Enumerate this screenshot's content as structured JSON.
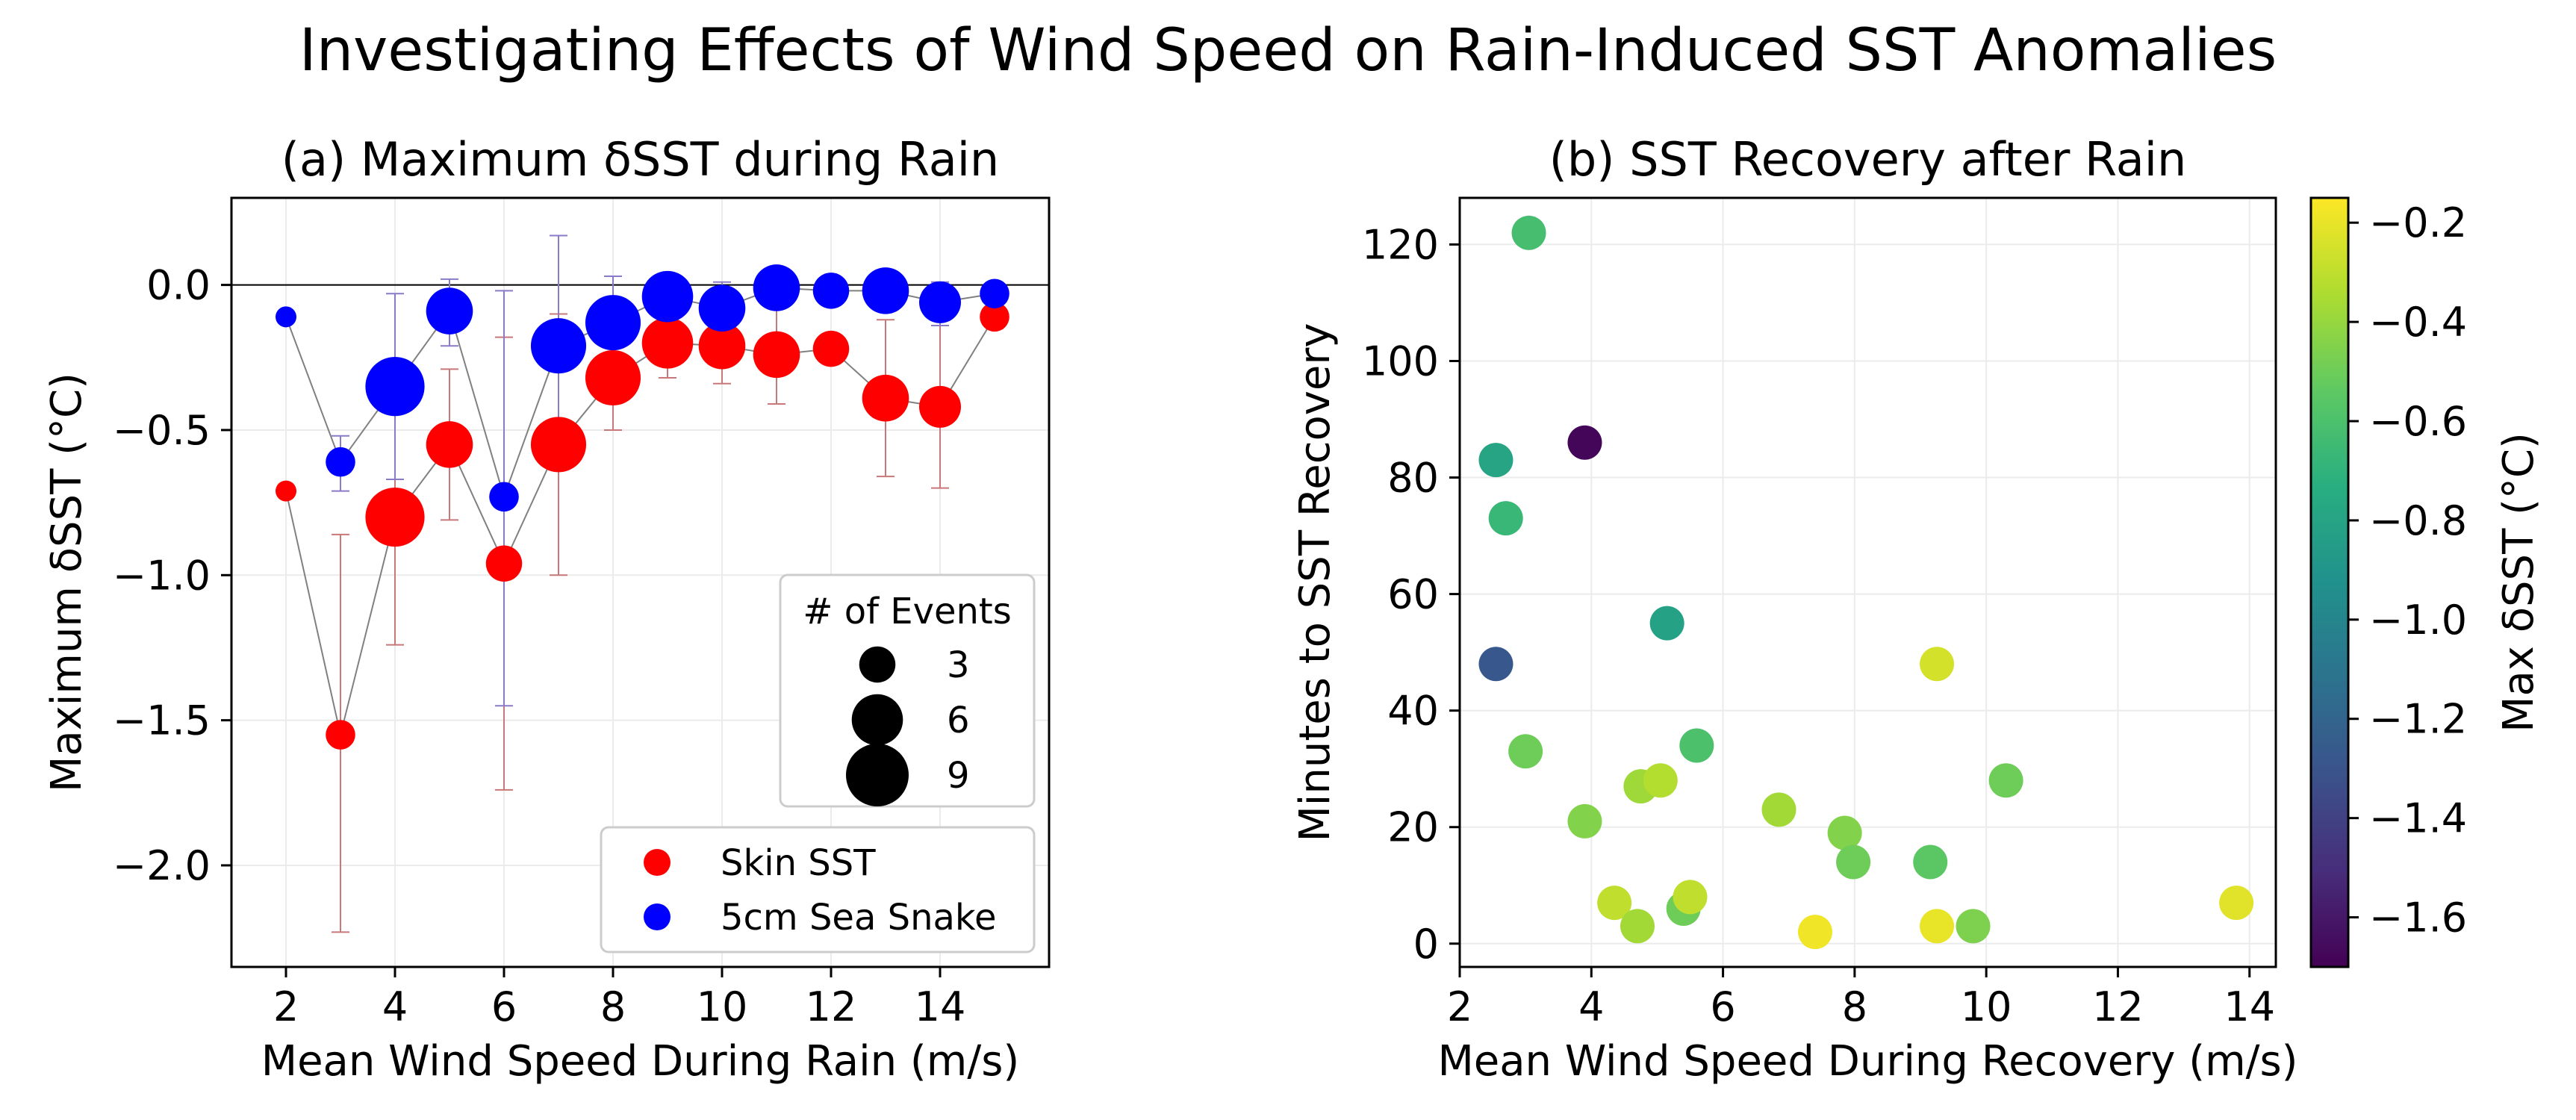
{
  "title": "Investigating Effects of Wind Speed on Rain-Induced SST Anomalies",
  "chart_data": [
    {
      "type": "scatter",
      "title": "(a) Maximum δSST during Rain",
      "xlabel": "Mean Wind Speed During Rain (m/s)",
      "ylabel": "Maximum δSST (°C)",
      "xlim": [
        1,
        16
      ],
      "ylim": [
        -2.35,
        0.3
      ],
      "xticks": [
        2,
        4,
        6,
        8,
        10,
        12,
        14
      ],
      "yticks": [
        0.0,
        -0.5,
        -1.0,
        -1.5,
        -2.0
      ],
      "xtick_labels": [
        "2",
        "4",
        "6",
        "8",
        "10",
        "12",
        "14"
      ],
      "ytick_labels": [
        "0.0",
        "−0.5",
        "−1.0",
        "−1.5",
        "−2.0"
      ],
      "grid": true,
      "reference_line_y": 0,
      "x": [
        2,
        3,
        4,
        5,
        6,
        7,
        8,
        9,
        10,
        11,
        12,
        13,
        14,
        15
      ],
      "series": [
        {
          "name": "Skin SST",
          "color": "#ff0000",
          "error_color": "#c87878",
          "values": [
            -0.71,
            -1.55,
            -0.8,
            -0.55,
            -0.96,
            -0.55,
            -0.32,
            -0.2,
            -0.21,
            -0.24,
            -0.22,
            -0.39,
            -0.42,
            -0.11
          ],
          "err_low": [
            -0.71,
            -2.23,
            -1.24,
            -0.81,
            -1.74,
            -1.0,
            -0.5,
            -0.32,
            -0.34,
            -0.41,
            -0.27,
            -0.66,
            -0.7,
            -0.15
          ],
          "err_high": [
            -0.71,
            -0.86,
            -0.36,
            -0.29,
            -0.18,
            -0.1,
            -0.14,
            -0.08,
            -0.08,
            -0.07,
            -0.17,
            -0.12,
            -0.14,
            -0.07
          ],
          "events": [
            1,
            2,
            8,
            5,
            3,
            7,
            7,
            6,
            5,
            5,
            3,
            5,
            4,
            2
          ]
        },
        {
          "name": "5cm Sea Snake",
          "color": "#0000ff",
          "error_color": "#8a7ac8",
          "values": [
            -0.11,
            -0.61,
            -0.35,
            -0.09,
            -0.73,
            -0.21,
            -0.13,
            -0.04,
            -0.08,
            -0.01,
            -0.02,
            -0.02,
            -0.06,
            -0.03
          ],
          "err_low": [
            -0.11,
            -0.71,
            -0.67,
            -0.21,
            -1.45,
            -0.6,
            -0.3,
            -0.09,
            -0.17,
            -0.03,
            -0.03,
            -0.06,
            -0.14,
            -0.05
          ],
          "err_high": [
            -0.11,
            -0.52,
            -0.03,
            0.02,
            -0.02,
            0.17,
            0.03,
            0.01,
            0.01,
            0.01,
            -0.01,
            0.03,
            0.01,
            -0.01
          ],
          "events": [
            1,
            2,
            8,
            5,
            2,
            7,
            7,
            6,
            5,
            5,
            3,
            5,
            4,
            2
          ]
        }
      ],
      "size_legend": {
        "title": "# of Events",
        "entries": [
          3,
          6,
          9
        ],
        "entry_labels": [
          "3",
          "6",
          "9"
        ]
      },
      "legend_position": "lower-right"
    },
    {
      "type": "scatter",
      "title": "(b) SST Recovery after Rain",
      "xlabel": "Mean Wind Speed During Recovery (m/s)",
      "ylabel": "Minutes to SST Recovery",
      "xlim": [
        2,
        14.4
      ],
      "ylim": [
        -4,
        128
      ],
      "xticks": [
        2,
        4,
        6,
        8,
        10,
        12,
        14
      ],
      "yticks": [
        0,
        20,
        40,
        60,
        80,
        100,
        120
      ],
      "xtick_labels": [
        "2",
        "4",
        "6",
        "8",
        "10",
        "12",
        "14"
      ],
      "ytick_labels": [
        "0",
        "20",
        "40",
        "60",
        "80",
        "100",
        "120"
      ],
      "grid": true,
      "colorbar": {
        "label": "Max δSST (°C)",
        "colormap": "viridis",
        "range": [
          -1.7,
          -0.15
        ],
        "ticks": [
          -0.2,
          -0.4,
          -0.6,
          -0.8,
          -1.0,
          -1.2,
          -1.4,
          -1.6
        ],
        "tick_labels": [
          "−0.2",
          "−0.4",
          "−0.6",
          "−0.8",
          "−1.0",
          "−1.2",
          "−1.4",
          "−1.6"
        ]
      },
      "points": [
        {
          "x": 3.05,
          "y": 122,
          "c": -0.62
        },
        {
          "x": 2.55,
          "y": 83,
          "c": -0.8
        },
        {
          "x": 3.9,
          "y": 86,
          "c": -1.68
        },
        {
          "x": 2.7,
          "y": 73,
          "c": -0.67
        },
        {
          "x": 5.15,
          "y": 55,
          "c": -0.82
        },
        {
          "x": 2.55,
          "y": 48,
          "c": -1.28
        },
        {
          "x": 9.25,
          "y": 48,
          "c": -0.25
        },
        {
          "x": 3.0,
          "y": 33,
          "c": -0.5
        },
        {
          "x": 5.6,
          "y": 34,
          "c": -0.6
        },
        {
          "x": 3.9,
          "y": 21,
          "c": -0.45
        },
        {
          "x": 4.75,
          "y": 27,
          "c": -0.38
        },
        {
          "x": 5.05,
          "y": 28,
          "c": -0.33
        },
        {
          "x": 6.85,
          "y": 23,
          "c": -0.37
        },
        {
          "x": 7.85,
          "y": 19,
          "c": -0.45
        },
        {
          "x": 7.98,
          "y": 14,
          "c": -0.5
        },
        {
          "x": 9.15,
          "y": 14,
          "c": -0.55
        },
        {
          "x": 10.3,
          "y": 28,
          "c": -0.5
        },
        {
          "x": 4.35,
          "y": 7,
          "c": -0.3
        },
        {
          "x": 4.7,
          "y": 3,
          "c": -0.37
        },
        {
          "x": 5.4,
          "y": 6,
          "c": -0.5
        },
        {
          "x": 5.5,
          "y": 8,
          "c": -0.3
        },
        {
          "x": 7.4,
          "y": 2,
          "c": -0.18
        },
        {
          "x": 9.25,
          "y": 3,
          "c": -0.2
        },
        {
          "x": 9.8,
          "y": 3,
          "c": -0.46
        },
        {
          "x": 13.8,
          "y": 7,
          "c": -0.22
        }
      ]
    }
  ]
}
